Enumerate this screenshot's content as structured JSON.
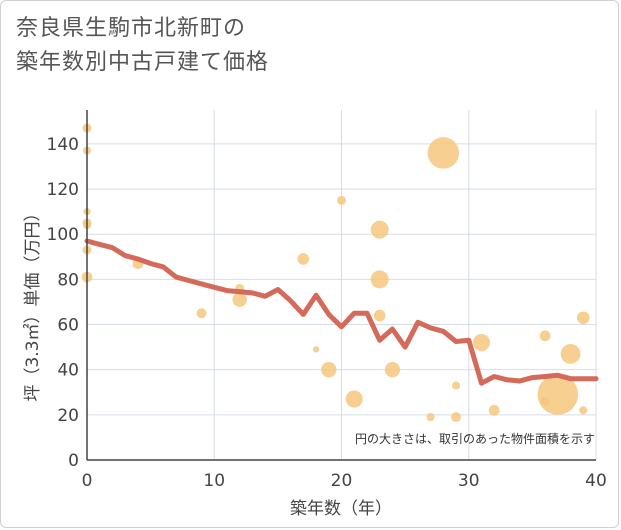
{
  "title": {
    "line1": "奈良県生駒市北新町の",
    "line2": "築年数別中古戸建て価格"
  },
  "colors": {
    "bubble": "#f5c77e",
    "line": "#d46a5a",
    "grid": "#d5dde6",
    "axis": "#444444"
  },
  "chart_data": {
    "type": "scatter",
    "xlabel": "築年数（年）",
    "ylabel": "坪（3.3㎡）単価（万円）",
    "xlim": [
      0,
      40
    ],
    "ylim": [
      0,
      155
    ],
    "xticks": [
      0,
      10,
      20,
      30,
      40
    ],
    "yticks": [
      0,
      20,
      40,
      60,
      80,
      100,
      120,
      140
    ],
    "annotation": "円の大きさは、取引のあった物件面積を示す",
    "bubbles": [
      {
        "x": 0,
        "y": 147,
        "size": 1.0
      },
      {
        "x": 0,
        "y": 137,
        "size": 0.9
      },
      {
        "x": 0,
        "y": 110,
        "size": 0.8
      },
      {
        "x": 0,
        "y": 105,
        "size": 1.0
      },
      {
        "x": 0,
        "y": 104,
        "size": 0.9
      },
      {
        "x": 0,
        "y": 93,
        "size": 1.0
      },
      {
        "x": 0,
        "y": 81,
        "size": 1.2
      },
      {
        "x": 4,
        "y": 87,
        "size": 1.2
      },
      {
        "x": 9,
        "y": 65,
        "size": 1.1
      },
      {
        "x": 12,
        "y": 76,
        "size": 1.0
      },
      {
        "x": 12,
        "y": 71,
        "size": 1.6
      },
      {
        "x": 17,
        "y": 89,
        "size": 1.3
      },
      {
        "x": 18,
        "y": 49,
        "size": 0.7
      },
      {
        "x": 19,
        "y": 40,
        "size": 1.7
      },
      {
        "x": 20,
        "y": 115,
        "size": 1.0
      },
      {
        "x": 21,
        "y": 27,
        "size": 1.9
      },
      {
        "x": 23,
        "y": 102,
        "size": 2.0
      },
      {
        "x": 23,
        "y": 80,
        "size": 2.0
      },
      {
        "x": 23,
        "y": 64,
        "size": 1.3
      },
      {
        "x": 24,
        "y": 40,
        "size": 1.7
      },
      {
        "x": 27,
        "y": 19,
        "size": 0.9
      },
      {
        "x": 28,
        "y": 136,
        "size": 3.5
      },
      {
        "x": 29,
        "y": 33,
        "size": 0.9
      },
      {
        "x": 29,
        "y": 19,
        "size": 1.1
      },
      {
        "x": 31,
        "y": 52,
        "size": 1.9
      },
      {
        "x": 32,
        "y": 22,
        "size": 1.2
      },
      {
        "x": 36,
        "y": 55,
        "size": 1.2
      },
      {
        "x": 36,
        "y": 26,
        "size": 1.0
      },
      {
        "x": 37,
        "y": 29,
        "size": 4.5
      },
      {
        "x": 38,
        "y": 47,
        "size": 2.2
      },
      {
        "x": 39,
        "y": 63,
        "size": 1.4
      },
      {
        "x": 39,
        "y": 22,
        "size": 0.9
      }
    ],
    "line": {
      "x": [
        0,
        1,
        2,
        3,
        4,
        5,
        6,
        7,
        8,
        9,
        10,
        11,
        12,
        13,
        14,
        15,
        16,
        17,
        18,
        19,
        20,
        21,
        22,
        23,
        24,
        25,
        26,
        27,
        28,
        29,
        30,
        31,
        32,
        33,
        34,
        35,
        36,
        37,
        38,
        39,
        40
      ],
      "y": [
        97,
        95.5,
        94,
        90.5,
        89,
        87,
        85.5,
        81,
        79.5,
        78,
        76.5,
        75,
        74.5,
        74,
        72.5,
        75.5,
        70.5,
        64.5,
        73,
        64.5,
        59,
        65,
        65,
        53,
        58,
        50,
        61,
        58.5,
        57,
        52.5,
        53,
        34,
        37,
        35.5,
        35,
        36.5,
        37,
        37.5,
        36,
        36,
        36
      ]
    }
  }
}
